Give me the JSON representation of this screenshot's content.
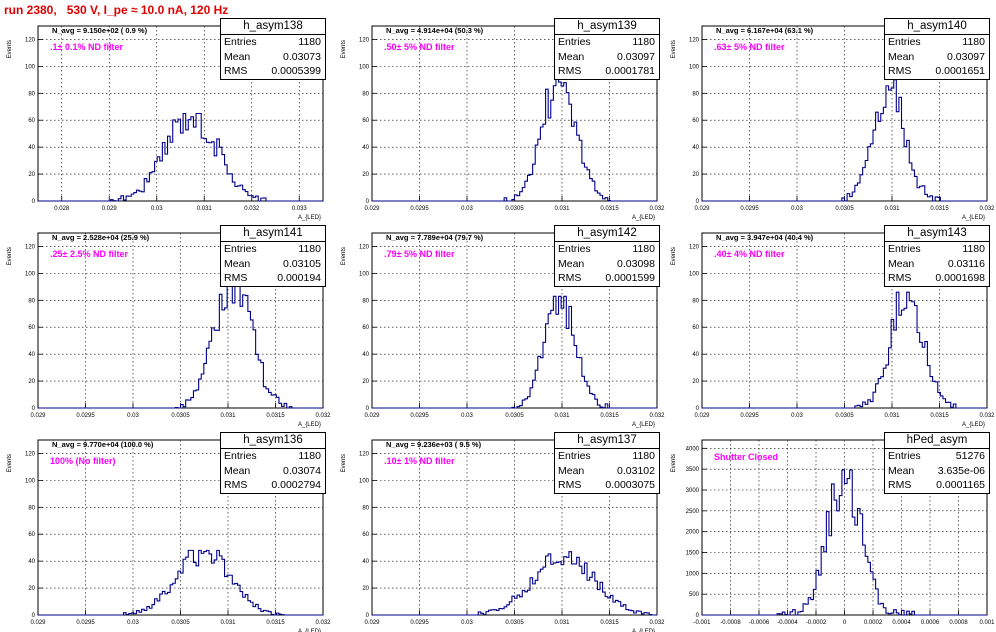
{
  "title": "run 2380,   530 V, I_pe ≈ 10.0 nA, 120 Hz",
  "x_axis_label": "A_{LED}",
  "y_axis_label": "Events",
  "colors": {
    "title": "#e00000",
    "annotation": "#ff00ff",
    "histogram": "#00008b"
  },
  "panels": [
    {
      "name": "h_asym138",
      "navg": "N_avg = 9.150e+02 ( 0.9 %)",
      "filter": ".1± 0.1% ND filter",
      "stats": {
        "entries_label": "Entries",
        "entries": "1180",
        "mean_label": "Mean",
        "mean": "0.03073",
        "rms_label": "RMS",
        "rms": "0.0005399"
      },
      "xlim": [
        0.0275,
        0.0335
      ],
      "ylim": [
        0,
        130
      ],
      "xticks": [
        "0.028",
        "0.029",
        "0.03",
        "0.031",
        "0.032",
        "0.033"
      ],
      "xtick_values": [
        0.028,
        0.029,
        0.03,
        0.031,
        0.032,
        0.033
      ],
      "yticks": [
        "0",
        "20",
        "40",
        "60",
        "80",
        "100",
        "120"
      ],
      "ytick_values": [
        0,
        20,
        40,
        60,
        80,
        100,
        120
      ],
      "mean_val": 0.03073,
      "rms_val": 0.00054,
      "peak": 65
    },
    {
      "name": "h_asym139",
      "navg": "N_avg = 4.914e+04 (50.3 %)",
      "filter": ".50± 5% ND filter",
      "stats": {
        "entries_label": "Entries",
        "entries": "1180",
        "mean_label": "Mean",
        "mean": "0.03097",
        "rms_label": "RMS",
        "rms": "0.0001781"
      },
      "xlim": [
        0.029,
        0.032
      ],
      "ylim": [
        0,
        130
      ],
      "xticks": [
        "0.029",
        "0.0295",
        "0.03",
        "0.0305",
        "0.031",
        "0.0315",
        "0.032"
      ],
      "xtick_values": [
        0.029,
        0.0295,
        0.03,
        0.0305,
        0.031,
        0.0315,
        0.032
      ],
      "yticks": [
        "0",
        "20",
        "40",
        "60",
        "80",
        "100",
        "120"
      ],
      "ytick_values": [
        0,
        20,
        40,
        60,
        80,
        100,
        120
      ],
      "mean_val": 0.03097,
      "rms_val": 0.000178,
      "peak": 93
    },
    {
      "name": "h_asym140",
      "navg": "N_avg = 6.167e+04 (63.1 %)",
      "filter": ".63± 5% ND filter",
      "stats": {
        "entries_label": "Entries",
        "entries": "1180",
        "mean_label": "Mean",
        "mean": "0.03097",
        "rms_label": "RMS",
        "rms": "0.0001651"
      },
      "xlim": [
        0.029,
        0.032
      ],
      "ylim": [
        0,
        130
      ],
      "xticks": [
        "0.029",
        "0.0295",
        "0.03",
        "0.0305",
        "0.031",
        "0.0315",
        "0.032"
      ],
      "xtick_values": [
        0.029,
        0.0295,
        0.03,
        0.0305,
        0.031,
        0.0315,
        0.032
      ],
      "yticks": [
        "0",
        "20",
        "40",
        "60",
        "80",
        "100",
        "120"
      ],
      "ytick_values": [
        0,
        20,
        40,
        60,
        80,
        100,
        120
      ],
      "mean_val": 0.03097,
      "rms_val": 0.000165,
      "peak": 90
    },
    {
      "name": "h_asym141",
      "navg": "N_avg = 2.528e+04 (25.9 %)",
      "filter": ".25± 2.5% ND filter",
      "stats": {
        "entries_label": "Entries",
        "entries": "1180",
        "mean_label": "Mean",
        "mean": "0.03105",
        "rms_label": "RMS",
        "rms": "0.000194"
      },
      "xlim": [
        0.029,
        0.032
      ],
      "ylim": [
        0,
        130
      ],
      "xticks": [
        "0.029",
        "0.0295",
        "0.03",
        "0.0305",
        "0.031",
        "0.0315",
        "0.032"
      ],
      "xtick_values": [
        0.029,
        0.0295,
        0.03,
        0.0305,
        0.031,
        0.0315,
        0.032
      ],
      "yticks": [
        "0",
        "20",
        "40",
        "60",
        "80",
        "100",
        "120"
      ],
      "ytick_values": [
        0,
        20,
        40,
        60,
        80,
        100,
        120
      ],
      "mean_val": 0.03105,
      "rms_val": 0.000194,
      "peak": 95
    },
    {
      "name": "h_asym142",
      "navg": "N_avg = 7.789e+04 (79.7 %)",
      "filter": ".79± 5% ND filter",
      "stats": {
        "entries_label": "Entries",
        "entries": "1180",
        "mean_label": "Mean",
        "mean": "0.03098",
        "rms_label": "RMS",
        "rms": "0.0001599"
      },
      "xlim": [
        0.029,
        0.032
      ],
      "ylim": [
        0,
        130
      ],
      "xticks": [
        "0.029",
        "0.0295",
        "0.03",
        "0.0305",
        "0.031",
        "0.0315",
        "0.032"
      ],
      "xtick_values": [
        0.029,
        0.0295,
        0.03,
        0.0305,
        0.031,
        0.0315,
        0.032
      ],
      "yticks": [
        "0",
        "20",
        "40",
        "60",
        "80",
        "100",
        "120"
      ],
      "ytick_values": [
        0,
        20,
        40,
        60,
        80,
        100,
        120
      ],
      "mean_val": 0.03098,
      "rms_val": 0.00016,
      "peak": 83
    },
    {
      "name": "h_asym143",
      "navg": "N_avg = 3.947e+04 (40.4 %)",
      "filter": ".40± 4% ND filter",
      "stats": {
        "entries_label": "Entries",
        "entries": "1180",
        "mean_label": "Mean",
        "mean": "0.03116",
        "rms_label": "RMS",
        "rms": "0.0001698"
      },
      "xlim": [
        0.029,
        0.032
      ],
      "ylim": [
        0,
        130
      ],
      "xticks": [
        "0.029",
        "0.0295",
        "0.03",
        "0.0305",
        "0.031",
        "0.0315",
        "0.032"
      ],
      "xtick_values": [
        0.029,
        0.0295,
        0.03,
        0.0305,
        0.031,
        0.0315,
        0.032
      ],
      "yticks": [
        "0",
        "20",
        "40",
        "60",
        "80",
        "100",
        "120"
      ],
      "ytick_values": [
        0,
        20,
        40,
        60,
        80,
        100,
        120
      ],
      "mean_val": 0.03116,
      "rms_val": 0.00017,
      "peak": 86
    },
    {
      "name": "h_asym136",
      "navg": "N_avg = 9.770e+04 (100.0 %)",
      "filter": "100% (No filter)",
      "stats": {
        "entries_label": "Entries",
        "entries": "1180",
        "mean_label": "Mean",
        "mean": "0.03074",
        "rms_label": "RMS",
        "rms": "0.0002794"
      },
      "xlim": [
        0.029,
        0.032
      ],
      "ylim": [
        0,
        130
      ],
      "xticks": [
        "0.029",
        "0.0295",
        "0.03",
        "0.0305",
        "0.031",
        "0.0315",
        "0.032"
      ],
      "xtick_values": [
        0.029,
        0.0295,
        0.03,
        0.0305,
        0.031,
        0.0315,
        0.032
      ],
      "yticks": [
        "0",
        "20",
        "40",
        "60",
        "80",
        "100",
        "120"
      ],
      "ytick_values": [
        0,
        20,
        40,
        60,
        80,
        100,
        120
      ],
      "mean_val": 0.03074,
      "rms_val": 0.00028,
      "peak": 48
    },
    {
      "name": "h_asym137",
      "navg": "N_avg = 9.236e+03 ( 9.5 %)",
      "filter": ".10± 1% ND filter",
      "stats": {
        "entries_label": "Entries",
        "entries": "1180",
        "mean_label": "Mean",
        "mean": "0.03102",
        "rms_label": "RMS",
        "rms": "0.0003075"
      },
      "xlim": [
        0.029,
        0.032
      ],
      "ylim": [
        0,
        130
      ],
      "xticks": [
        "0.029",
        "0.0295",
        "0.03",
        "0.0305",
        "0.031",
        "0.0315",
        "0.032"
      ],
      "xtick_values": [
        0.029,
        0.0295,
        0.03,
        0.0305,
        0.031,
        0.0315,
        0.032
      ],
      "yticks": [
        "0",
        "20",
        "40",
        "60",
        "80",
        "100",
        "120"
      ],
      "ytick_values": [
        0,
        20,
        40,
        60,
        80,
        100,
        120
      ],
      "mean_val": 0.03102,
      "rms_val": 0.00031,
      "peak": 47
    },
    {
      "name": "hPed_asym",
      "navg": "",
      "filter": "Shutter Closed",
      "stats": {
        "entries_label": "Entries",
        "entries": "51276",
        "mean_label": "Mean",
        "mean": "3.635e-06",
        "rms_label": "RMS",
        "rms": "0.0001165"
      },
      "xlim": [
        -0.001,
        0.001
      ],
      "ylim": [
        0,
        4200
      ],
      "xticks": [
        "-0.001",
        "-0.0008",
        "-0.0006",
        "-0.0004",
        "-0.0002",
        "0",
        "0.0002",
        "0.0004",
        "0.0006",
        "0.0008",
        "0.001"
      ],
      "xtick_values": [
        -0.001,
        -0.0008,
        -0.0006,
        -0.0004,
        -0.0002,
        0,
        0.0002,
        0.0004,
        0.0006,
        0.0008,
        0.001
      ],
      "yticks": [
        "0",
        "500",
        "1000",
        "1500",
        "2000",
        "2500",
        "3000",
        "3500",
        "4000"
      ],
      "ytick_values": [
        0,
        500,
        1000,
        1500,
        2000,
        2500,
        3000,
        3500,
        4000
      ],
      "mean_val": 3.6e-06,
      "rms_val": 0.0001165,
      "peak": 3480
    }
  ],
  "chart_data": [
    {
      "type": "histogram",
      "title": "h_asym138",
      "xlabel": "A_{LED}",
      "ylabel": "Events",
      "xlim": [
        0.0275,
        0.0335
      ],
      "ylim": [
        0,
        130
      ],
      "entries": 1180,
      "mean": 0.03073,
      "rms": 0.0005399,
      "peak_events": 65
    },
    {
      "type": "histogram",
      "title": "h_asym139",
      "xlabel": "A_{LED}",
      "ylabel": "Events",
      "xlim": [
        0.029,
        0.032
      ],
      "ylim": [
        0,
        130
      ],
      "entries": 1180,
      "mean": 0.03097,
      "rms": 0.0001781,
      "peak_events": 93
    },
    {
      "type": "histogram",
      "title": "h_asym140",
      "xlabel": "A_{LED}",
      "ylabel": "Events",
      "xlim": [
        0.029,
        0.032
      ],
      "ylim": [
        0,
        130
      ],
      "entries": 1180,
      "mean": 0.03097,
      "rms": 0.0001651,
      "peak_events": 90
    },
    {
      "type": "histogram",
      "title": "h_asym141",
      "xlabel": "A_{LED}",
      "ylabel": "Events",
      "xlim": [
        0.029,
        0.032
      ],
      "ylim": [
        0,
        130
      ],
      "entries": 1180,
      "mean": 0.03105,
      "rms": 0.000194,
      "peak_events": 95
    },
    {
      "type": "histogram",
      "title": "h_asym142",
      "xlabel": "A_{LED}",
      "ylabel": "Events",
      "xlim": [
        0.029,
        0.032
      ],
      "ylim": [
        0,
        130
      ],
      "entries": 1180,
      "mean": 0.03098,
      "rms": 0.0001599,
      "peak_events": 83
    },
    {
      "type": "histogram",
      "title": "h_asym143",
      "xlabel": "A_{LED}",
      "ylabel": "Events",
      "xlim": [
        0.029,
        0.032
      ],
      "ylim": [
        0,
        130
      ],
      "entries": 1180,
      "mean": 0.03116,
      "rms": 0.0001698,
      "peak_events": 86
    },
    {
      "type": "histogram",
      "title": "h_asym136",
      "xlabel": "A_{LED}",
      "ylabel": "Events",
      "xlim": [
        0.029,
        0.032
      ],
      "ylim": [
        0,
        130
      ],
      "entries": 1180,
      "mean": 0.03074,
      "rms": 0.0002794,
      "peak_events": 48
    },
    {
      "type": "histogram",
      "title": "h_asym137",
      "xlabel": "A_{LED}",
      "ylabel": "Events",
      "xlim": [
        0.029,
        0.032
      ],
      "ylim": [
        0,
        130
      ],
      "entries": 1180,
      "mean": 0.03102,
      "rms": 0.0003075,
      "peak_events": 47
    },
    {
      "type": "histogram",
      "title": "hPed_asym",
      "xlabel": "",
      "ylabel": "Events",
      "xlim": [
        -0.001,
        0.001
      ],
      "ylim": [
        0,
        4200
      ],
      "entries": 51276,
      "mean": 3.635e-06,
      "rms": 0.0001165,
      "peak_events": 3480
    }
  ]
}
